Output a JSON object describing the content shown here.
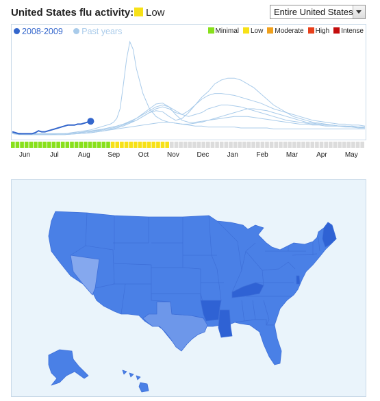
{
  "header": {
    "title": "United States flu activity:",
    "level_label": "Low",
    "level_color": "#f7e117"
  },
  "region_select": {
    "value": "Entire United States"
  },
  "chart_legend": {
    "current": {
      "label": "2008-2009",
      "color": "#3366cc"
    },
    "past": {
      "label": "Past years",
      "color": "#a9cbea"
    },
    "levels": [
      {
        "label": "Minimal",
        "color": "#88e01c"
      },
      {
        "label": "Low",
        "color": "#f7e117"
      },
      {
        "label": "Moderate",
        "color": "#f0a11d"
      },
      {
        "label": "High",
        "color": "#e8401b"
      },
      {
        "label": "Intense",
        "color": "#c40d0d"
      }
    ]
  },
  "chart_data": {
    "type": "line",
    "x_months": [
      "Jun",
      "Jul",
      "Aug",
      "Sep",
      "Oct",
      "Nov",
      "Dec",
      "Jan",
      "Feb",
      "Mar",
      "Apr",
      "May"
    ],
    "y_range": [
      0,
      100
    ],
    "series": [
      {
        "name": "2008-2009",
        "x": [
          0,
          1,
          2,
          3,
          4,
          5,
          6,
          7,
          8,
          9,
          10,
          11,
          12,
          13,
          14,
          15,
          16,
          17,
          18,
          19,
          20,
          21,
          22,
          23,
          24
        ],
        "values": [
          6,
          5,
          4,
          4,
          4,
          4,
          4,
          5,
          7,
          6,
          6,
          7,
          8,
          9,
          10,
          11,
          12,
          13,
          13,
          13,
          14,
          14,
          15,
          16,
          17
        ]
      },
      {
        "name": "",
        "x": [
          0,
          2,
          4,
          6,
          8,
          10,
          12,
          14,
          16,
          18,
          20,
          22,
          24,
          26,
          28,
          30,
          31,
          32,
          33,
          34,
          35,
          36,
          37,
          38,
          40,
          42,
          44,
          46,
          48,
          50,
          52,
          54,
          56,
          58,
          60,
          62,
          64,
          66,
          68,
          70,
          72,
          74,
          76,
          78,
          80,
          82,
          84,
          86,
          88,
          90,
          92,
          94,
          96,
          98,
          100,
          102,
          104,
          106,
          108
        ],
        "values": [
          4,
          3,
          3,
          3,
          3,
          3,
          3,
          4,
          4,
          5,
          6,
          7,
          8,
          10,
          12,
          14,
          16,
          20,
          30,
          55,
          82,
          100,
          92,
          72,
          46,
          30,
          22,
          18,
          16,
          15,
          14,
          13,
          12,
          12,
          11,
          11,
          11,
          11,
          11,
          10,
          10,
          10,
          10,
          10,
          9,
          9,
          9,
          9,
          9,
          9,
          9,
          9,
          9,
          9,
          9,
          9,
          9,
          9,
          9
        ]
      },
      {
        "name": "",
        "x": [
          0,
          4,
          8,
          12,
          16,
          20,
          24,
          28,
          32,
          34,
          36,
          38,
          40,
          42,
          44,
          46,
          48,
          50,
          52,
          54,
          56,
          58,
          60,
          62,
          64,
          66,
          68,
          70,
          72,
          74,
          76,
          78,
          80,
          82,
          84,
          86,
          88,
          90,
          92,
          94,
          96,
          98,
          100,
          102,
          104,
          106,
          108
        ],
        "values": [
          5,
          4,
          4,
          4,
          4,
          5,
          6,
          9,
          12,
          14,
          16,
          18,
          22,
          26,
          28,
          27,
          22,
          18,
          20,
          26,
          34,
          42,
          48,
          56,
          60,
          62,
          62,
          60,
          56,
          52,
          46,
          40,
          34,
          30,
          26,
          22,
          20,
          18,
          16,
          15,
          14,
          13,
          12,
          12,
          11,
          11,
          10
        ]
      },
      {
        "name": "",
        "x": [
          0,
          4,
          8,
          12,
          16,
          20,
          24,
          28,
          32,
          34,
          36,
          38,
          40,
          42,
          44,
          46,
          48,
          50,
          52,
          54,
          56,
          58,
          60,
          62,
          64,
          66,
          68,
          70,
          72,
          74,
          76,
          78,
          80,
          82,
          84,
          86,
          88,
          90,
          92,
          94,
          96,
          98,
          100,
          102,
          104,
          106,
          108
        ],
        "values": [
          4,
          4,
          3,
          3,
          3,
          4,
          5,
          7,
          10,
          12,
          15,
          18,
          22,
          26,
          30,
          32,
          30,
          26,
          24,
          28,
          34,
          40,
          44,
          46,
          46,
          45,
          44,
          42,
          40,
          38,
          36,
          33,
          30,
          28,
          26,
          24,
          22,
          20,
          18,
          17,
          16,
          15,
          14,
          14,
          13,
          13,
          12
        ]
      },
      {
        "name": "",
        "x": [
          0,
          4,
          8,
          12,
          16,
          20,
          24,
          28,
          32,
          34,
          36,
          38,
          40,
          42,
          44,
          46,
          48,
          50,
          52,
          54,
          56,
          58,
          60,
          62,
          64,
          66,
          68,
          70,
          72,
          74,
          76,
          78,
          80,
          82,
          84,
          86,
          88,
          90,
          92,
          94,
          96,
          98,
          100,
          102,
          104,
          106,
          108
        ],
        "values": [
          5,
          4,
          4,
          4,
          4,
          5,
          7,
          9,
          12,
          14,
          17,
          20,
          24,
          28,
          32,
          34,
          32,
          28,
          24,
          22,
          24,
          26,
          30,
          32,
          34,
          34,
          33,
          32,
          30,
          28,
          26,
          24,
          22,
          20,
          18,
          17,
          16,
          15,
          14,
          14,
          13,
          13,
          12,
          12,
          12,
          11,
          11
        ]
      },
      {
        "name": "",
        "x": [
          0,
          4,
          8,
          12,
          16,
          20,
          24,
          28,
          32,
          34,
          36,
          38,
          40,
          42,
          44,
          46,
          48,
          50,
          52,
          54,
          56,
          58,
          60,
          62,
          64,
          66,
          68,
          70,
          72,
          74,
          76,
          78,
          80,
          82,
          84,
          86,
          88,
          90,
          92,
          94,
          96,
          98,
          100,
          102,
          104,
          106,
          108
        ],
        "values": [
          4,
          4,
          4,
          4,
          4,
          5,
          6,
          8,
          11,
          13,
          16,
          20,
          25,
          30,
          35,
          36,
          32,
          24,
          18,
          16,
          16,
          17,
          18,
          19,
          20,
          21,
          22,
          22,
          22,
          21,
          20,
          19,
          18,
          17,
          16,
          15,
          14,
          14,
          13,
          13,
          12,
          12,
          12,
          11,
          11,
          10,
          10
        ]
      },
      {
        "name": "",
        "x": [
          0,
          4,
          8,
          12,
          16,
          20,
          24,
          28,
          32,
          34,
          36,
          38,
          40,
          42,
          44,
          46,
          48,
          50,
          52,
          54,
          56,
          58,
          60,
          62,
          64,
          66,
          68,
          70,
          72,
          74,
          76,
          78,
          80,
          82,
          84,
          86,
          88,
          90,
          92,
          94,
          96,
          98,
          100,
          102,
          104,
          106,
          108
        ],
        "values": [
          4,
          3,
          3,
          3,
          3,
          4,
          5,
          7,
          9,
          10,
          11,
          12,
          13,
          14,
          15,
          16,
          16,
          15,
          14,
          14,
          15,
          16,
          18,
          20,
          22,
          24,
          26,
          28,
          30,
          30,
          29,
          28,
          26,
          24,
          22,
          20,
          18,
          16,
          15,
          14,
          13,
          13,
          12,
          12,
          11,
          11,
          10
        ]
      }
    ],
    "current_week_index": 24
  },
  "activity_strip": {
    "minimal_weeks": 22,
    "low_weeks": 13,
    "future_weeks": 43,
    "future_color": "#dcdcdc"
  },
  "map": {
    "colors": {
      "base": "#4a80e6",
      "light": "#6d97ea",
      "lighter": "#85a8ee",
      "dark": "#2f62d4",
      "background": "#eaf4fb"
    }
  }
}
